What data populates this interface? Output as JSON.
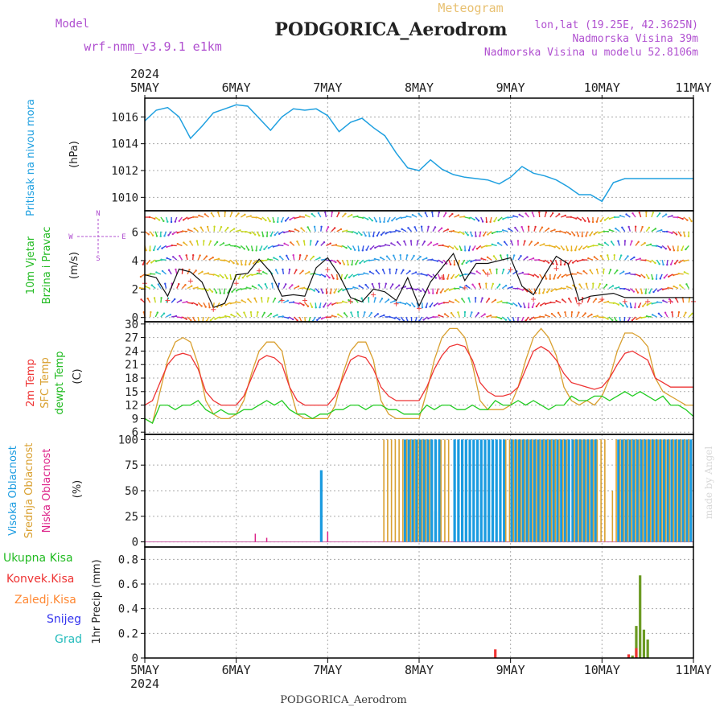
{
  "header": {
    "meteogram_label": "Meteogram",
    "station": "PODGORICA_Aerodrom",
    "model_label": "Model",
    "model_name": "wrf-nmm_v3.9.1  e1km",
    "coords": "lon,lat (19.25E, 42.3625N)",
    "elevation": "Nadmorska Visina 39m",
    "model_elevation": "Nadmorska Visina u modelu 52.8106m",
    "footer_station": "PODGORICA_Aerodrom",
    "credit": "made by Angel"
  },
  "time_axis": {
    "year": "2024",
    "ticks": [
      "5MAY",
      "6MAY",
      "7MAY",
      "8MAY",
      "9MAY",
      "10MAY",
      "11MAY"
    ]
  },
  "colors": {
    "pressure": "#1fa0e0",
    "temp2m": "#ee3333",
    "sfc": "#d9a030",
    "dewpt": "#22cc22",
    "wind_speed": "#111111",
    "gust": "#ee4444",
    "high_cloud": "#1a9be0",
    "mid_cloud": "#d9a030",
    "low_cloud": "#dd2288",
    "rain_total": "#22bb22",
    "convective": "#ee3333",
    "freezing": "#ff8833",
    "snow": "#3333ee",
    "hail": "#22bbbb"
  },
  "panels": {
    "pressure": {
      "label": "Pritisak na nivou mora",
      "unit": "(hPa)",
      "ticks": [
        "1010",
        "1012",
        "1014",
        "1016"
      ]
    },
    "wind": {
      "label1": "10m Vjetar",
      "label2": "Brzina i Pravac",
      "unit": "(m/s)",
      "ticks": [
        "0",
        "2",
        "4",
        "6"
      ],
      "compass_n": "N",
      "compass_s": "S",
      "compass_e": "E",
      "compass_w": "W"
    },
    "temp": {
      "label1": "2m Temp",
      "label2": "SFC Temp",
      "label3": "dewpt Temp",
      "unit": "(C)",
      "ticks": [
        "6",
        "9",
        "12",
        "15",
        "18",
        "21",
        "24",
        "27",
        "30"
      ]
    },
    "cloud": {
      "label1": "Visoka Oblacnost",
      "label2": "Srednja Oblacnost",
      "label3": "Niska Oblacnost",
      "unit": "(%)",
      "ticks": [
        "0",
        "25",
        "50",
        "75",
        "100"
      ]
    },
    "precip": {
      "label_total": "Ukupna Kisa",
      "label_conv": "Konvek.Kisa",
      "label_frz": "Zaledj.Kisa",
      "label_snow": "Snijeg",
      "label_hail": "Grad",
      "unit": "1hr Precip (mm)",
      "ticks": [
        "0",
        "0.2",
        "0.4",
        "0.6",
        "0.8"
      ]
    }
  },
  "chart_data": [
    {
      "type": "line",
      "name": "pressure",
      "ylabel": "hPa",
      "ylim": [
        1009,
        1017.4
      ],
      "x_hours": [
        0,
        3,
        6,
        9,
        12,
        15,
        18,
        21,
        24,
        27,
        30,
        33,
        36,
        39,
        42,
        45,
        48,
        51,
        54,
        57,
        60,
        63,
        66,
        69,
        72,
        75,
        78,
        81,
        84,
        87,
        90,
        93,
        96,
        99,
        102,
        105,
        108,
        111,
        114,
        117,
        120,
        123,
        126,
        129,
        132,
        135,
        138,
        141,
        144
      ],
      "values": [
        1015.7,
        1016.5,
        1016.7,
        1016.0,
        1014.4,
        1015.3,
        1016.3,
        1016.6,
        1016.9,
        1016.8,
        1015.9,
        1015.0,
        1016.0,
        1016.6,
        1016.5,
        1016.6,
        1016.1,
        1014.9,
        1015.6,
        1015.9,
        1015.2,
        1014.6,
        1013.3,
        1012.2,
        1012.0,
        1012.8,
        1012.1,
        1011.7,
        1011.5,
        1011.4,
        1011.3,
        1011.0,
        1011.5,
        1012.3,
        1011.8,
        1011.6,
        1011.3,
        1010.8,
        1010.2,
        1010.2,
        1009.7,
        1011.1,
        1011.4,
        1011.4,
        1011.4,
        1011.4,
        1011.4,
        1011.4,
        1011.4
      ]
    },
    {
      "type": "line",
      "name": "wind_speed",
      "ylabel": "m/s",
      "ylim": [
        0,
        7.5
      ],
      "x_hours": [
        0,
        3,
        6,
        9,
        12,
        15,
        18,
        21,
        24,
        27,
        30,
        33,
        36,
        39,
        42,
        45,
        48,
        51,
        54,
        57,
        60,
        63,
        66,
        69,
        72,
        75,
        78,
        81,
        84,
        87,
        90,
        93,
        96,
        99,
        102,
        105,
        108,
        111,
        114,
        117,
        120,
        123,
        126,
        129,
        132,
        135,
        138,
        141,
        144
      ],
      "values": [
        3.0,
        2.8,
        1.5,
        3.4,
        3.2,
        2.5,
        0.7,
        1.0,
        3.0,
        3.1,
        4.1,
        3.2,
        1.5,
        1.6,
        1.5,
        3.5,
        4.2,
        3.0,
        1.4,
        1.1,
        2.0,
        1.8,
        1.2,
        2.8,
        0.8,
        2.5,
        3.5,
        4.5,
        2.6,
        3.8,
        3.8,
        4.0,
        4.2,
        2.2,
        1.6,
        3.0,
        4.3,
        3.8,
        1.2,
        1.5,
        1.6,
        1.7,
        1.4,
        1.4,
        1.4,
        1.4,
        1.4,
        1.4,
        1.4
      ]
    },
    {
      "type": "line",
      "name": "2m Temp",
      "ylabel": "C",
      "ylim": [
        5.5,
        30.5
      ],
      "x_hours": [
        0,
        2,
        4,
        6,
        8,
        10,
        12,
        14,
        16,
        18,
        20,
        22,
        24,
        26,
        28,
        30,
        32,
        34,
        36,
        38,
        40,
        42,
        44,
        46,
        48,
        50,
        52,
        54,
        56,
        58,
        60,
        62,
        64,
        66,
        68,
        70,
        72,
        74,
        76,
        78,
        80,
        82,
        84,
        86,
        88,
        90,
        92,
        94,
        96,
        98,
        100,
        102,
        104,
        106,
        108,
        110,
        112,
        114,
        116,
        118,
        120,
        122,
        124,
        126,
        128,
        130,
        132,
        134,
        136,
        138,
        140,
        142,
        144
      ],
      "values": [
        12,
        13,
        17,
        21,
        23,
        23.5,
        23,
        20,
        15,
        13,
        12,
        12,
        12,
        14,
        18,
        22,
        23,
        22.5,
        21,
        16,
        13,
        12,
        12,
        12,
        12,
        14,
        18,
        22,
        23,
        22.5,
        20,
        16,
        14,
        13,
        13,
        13,
        13,
        16,
        20,
        23,
        25,
        25.5,
        25,
        22,
        17,
        15,
        14,
        14,
        14.5,
        16,
        20,
        24,
        25,
        24,
        22,
        19,
        17,
        16.5,
        16,
        15.5,
        16,
        18,
        21,
        23.5,
        24,
        23,
        22,
        18,
        17,
        16,
        16,
        16,
        16
      ]
    },
    {
      "type": "line",
      "name": "SFC Temp",
      "ylabel": "C",
      "ylim": [
        5.5,
        30.5
      ],
      "x_hours": [
        0,
        2,
        4,
        6,
        8,
        10,
        12,
        14,
        16,
        18,
        20,
        22,
        24,
        26,
        28,
        30,
        32,
        34,
        36,
        38,
        40,
        42,
        44,
        46,
        48,
        50,
        52,
        54,
        56,
        58,
        60,
        62,
        64,
        66,
        68,
        70,
        72,
        74,
        76,
        78,
        80,
        82,
        84,
        86,
        88,
        90,
        92,
        94,
        96,
        98,
        100,
        102,
        104,
        106,
        108,
        110,
        112,
        114,
        116,
        118,
        120,
        122,
        124,
        126,
        128,
        130,
        132,
        134,
        136,
        138,
        140,
        142,
        144
      ],
      "values": [
        9,
        8,
        15,
        22,
        26,
        27,
        26,
        21,
        13,
        10,
        9,
        9,
        10,
        13,
        19,
        24,
        26,
        26,
        24,
        16,
        10,
        9,
        9,
        9,
        9,
        12,
        19,
        24,
        26,
        26,
        22,
        13,
        10,
        9,
        9,
        9,
        9,
        15,
        22,
        27,
        29,
        29,
        27,
        21,
        13,
        11,
        11,
        11,
        12,
        16,
        22,
        27,
        29,
        27,
        23,
        16,
        13,
        12,
        13,
        12,
        14,
        18,
        24,
        28,
        28,
        27,
        25,
        18,
        15,
        14,
        13,
        12,
        12
      ]
    },
    {
      "type": "line",
      "name": "dewpt Temp",
      "ylabel": "C",
      "ylim": [
        5.5,
        30.5
      ],
      "x_hours": [
        0,
        2,
        4,
        6,
        8,
        10,
        12,
        14,
        16,
        18,
        20,
        22,
        24,
        26,
        28,
        30,
        32,
        34,
        36,
        38,
        40,
        42,
        44,
        46,
        48,
        50,
        52,
        54,
        56,
        58,
        60,
        62,
        64,
        66,
        68,
        70,
        72,
        74,
        76,
        78,
        80,
        82,
        84,
        86,
        88,
        90,
        92,
        94,
        96,
        98,
        100,
        102,
        104,
        106,
        108,
        110,
        112,
        114,
        116,
        118,
        120,
        122,
        124,
        126,
        128,
        130,
        132,
        134,
        136,
        138,
        140,
        142,
        144
      ],
      "values": [
        9,
        8,
        12,
        12,
        11,
        12,
        12,
        13,
        11,
        10,
        11,
        10,
        10,
        11,
        11,
        12,
        13,
        12,
        13,
        11,
        10,
        10,
        9,
        10,
        10,
        11,
        11,
        12,
        12,
        11,
        12,
        12,
        11,
        11,
        10,
        10,
        10,
        12,
        11,
        12,
        12,
        11,
        11,
        12,
        11,
        11,
        13,
        12,
        12,
        13,
        12,
        13,
        12,
        11,
        12,
        12,
        14,
        13,
        13,
        14,
        14,
        13,
        14,
        15,
        14,
        15,
        14,
        13,
        14,
        12,
        12,
        11,
        9.5
      ]
    },
    {
      "type": "bar",
      "name": "cloud",
      "ylabel": "%",
      "ylim": [
        0,
        100
      ],
      "note": "hourly high/mid/low cloud cover",
      "series": [
        {
          "name": "Visoka Oblacnost",
          "hours_100": [
            68,
            69,
            70,
            71,
            72,
            73,
            74,
            75,
            76,
            77,
            81,
            82,
            83,
            84,
            85,
            86,
            87,
            88,
            89,
            90,
            91,
            92,
            93,
            94,
            96,
            97,
            98,
            99,
            100,
            101,
            102,
            103,
            104,
            105,
            106,
            107,
            108,
            109,
            110,
            111,
            112,
            113,
            114,
            115,
            116,
            117,
            118,
            124,
            125,
            126,
            127,
            128,
            129,
            130,
            131,
            132,
            133,
            134,
            135,
            136,
            137,
            138,
            139,
            140,
            141,
            142,
            143
          ],
          "extra": [
            [
              46,
              70
            ],
            [
              76,
              30
            ],
            [
              89,
              72
            ],
            [
              98,
              30
            ]
          ]
        },
        {
          "name": "Srednja Oblacnost",
          "hours_100": [
            63,
            64,
            65,
            66,
            67,
            68,
            69,
            70,
            71,
            72,
            73,
            74,
            75,
            78,
            79,
            80,
            95,
            96,
            97,
            98,
            99,
            100,
            101,
            102,
            103,
            104,
            105,
            106,
            107,
            108,
            109,
            110,
            111,
            113,
            114,
            115,
            116,
            117,
            118,
            119,
            120,
            121,
            124,
            125,
            126,
            127,
            128,
            129,
            130,
            131,
            132,
            133,
            134,
            135,
            136,
            137,
            138,
            139,
            140,
            141,
            142,
            143
          ],
          "extra": [
            [
              103,
              50
            ],
            [
              118,
              30
            ],
            [
              123,
              50
            ]
          ]
        },
        {
          "name": "Niska Oblacnost",
          "hours_100": [],
          "extra": [
            [
              29,
              8
            ],
            [
              32,
              4
            ],
            [
              48,
              10
            ]
          ]
        }
      ]
    },
    {
      "type": "bar",
      "name": "precip",
      "ylabel": "mm",
      "ylim": [
        0,
        0.9
      ],
      "series": [
        {
          "name": "Ukupna Kisa",
          "points": [
            [
              128,
              0.02
            ],
            [
              129,
              0.26
            ],
            [
              130,
              0.67
            ],
            [
              131,
              0.23
            ],
            [
              132,
              0.15
            ]
          ]
        },
        {
          "name": "Konvek.Kisa",
          "points": [
            [
              92,
              0.07
            ],
            [
              127,
              0.03
            ],
            [
              129,
              0.08
            ]
          ]
        }
      ]
    }
  ]
}
